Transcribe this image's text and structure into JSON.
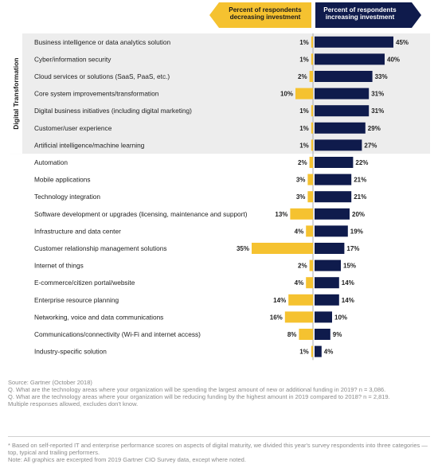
{
  "chart_data": {
    "type": "bar",
    "header": {
      "decreasing": [
        "Percent of respondents",
        "decreasing investment"
      ],
      "increasing": [
        "Percent of respondents",
        "increasing investment"
      ]
    },
    "group_label": "Digital Transformation",
    "group_size": 7,
    "categories": [
      "Business intelligence or data analytics solution",
      "Cyber/information security",
      "Cloud services or solutions (SaaS, PaaS, etc.)",
      "Core system improvements/transformation",
      "Digital business initiatives (including digital marketing)",
      "Customer/user experience",
      "Artificial intelligence/machine learning",
      "Automation",
      "Mobile applications",
      "Technology integration",
      "Software development or upgrades (licensing, maintenance and support)",
      "Infrastructure and data center",
      "Customer relationship management solutions",
      "Internet of things",
      "E-commerce/citizen portal/website",
      "Enterprise resource planning",
      "Networking, voice and data communications",
      "Communications/connectivity (Wi-Fi and internet access)",
      "Industry-specific solution"
    ],
    "series": [
      {
        "name": "Percent of respondents decreasing investment",
        "values": [
          1,
          1,
          2,
          10,
          1,
          1,
          1,
          2,
          3,
          3,
          13,
          4,
          35,
          2,
          4,
          14,
          16,
          8,
          1
        ]
      },
      {
        "name": "Percent of respondents increasing investment",
        "values": [
          45,
          40,
          33,
          31,
          31,
          29,
          27,
          22,
          21,
          21,
          20,
          19,
          17,
          15,
          14,
          14,
          10,
          9,
          4
        ]
      }
    ],
    "colors": {
      "decreasing": "#f5c230",
      "increasing": "#0f1b4c",
      "group_band": "#ededed"
    }
  },
  "notes": {
    "source": [
      "Source: Gartner (October 2018)",
      "Q. What are the technology areas where your organization will be spending the largest amount of new or additional funding in 2019? n = 3,086.",
      "Q. What are the technology areas where your organization will be reducing funding by the highest amount in 2019 compared to 2018? n = 2,819.",
      "Multiple responses allowed, excludes don't know."
    ],
    "footnote": [
      "* Based on self-reported IT and enterprise performance scores on aspects of digital maturity, we divided this year's survey respondents into three categories — top, typical and trailing performers.",
      "Note: All graphics are excerpted from 2019 Gartner CIO Survey data, except where noted."
    ]
  }
}
